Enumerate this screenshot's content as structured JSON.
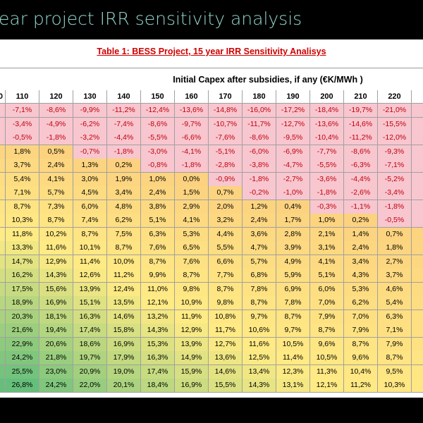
{
  "header": {
    "title": "ear project IRR sensitivity analysis"
  },
  "table": {
    "title": "Table 1: BESS Project, 15 year IRR Sensitivity Analisys",
    "caption": "Initial Capex after subsidies, if any (€K/MWh )",
    "columns": [
      "0",
      "110",
      "120",
      "130",
      "140",
      "150",
      "160",
      "170",
      "180",
      "190",
      "200",
      "210",
      "220"
    ],
    "rows": [
      [
        "-7,1%",
        "-8,6%",
        "-9,9%",
        "-11,2%",
        "-12,4%",
        "-13,6%",
        "-14,8%",
        "-16,0%",
        "-17,2%",
        "-18,4%",
        "-19,7%",
        "-21,0%"
      ],
      [
        "-3,4%",
        "-4,9%",
        "-6,2%",
        "-7,4%",
        "-8,6%",
        "-9,7%",
        "-10,7%",
        "-11,7%",
        "-12,7%",
        "-13,6%",
        "-14,6%",
        "-15,5%"
      ],
      [
        "-0,5%",
        "-1,8%",
        "-3,2%",
        "-4,4%",
        "-5,5%",
        "-6,6%",
        "-7,6%",
        "-8,6%",
        "-9,5%",
        "-10,4%",
        "-11,2%",
        "-12,0%"
      ],
      [
        "1,8%",
        "0,5%",
        "-0,7%",
        "-1,8%",
        "-3,0%",
        "-4,1%",
        "-5,1%",
        "-6,0%",
        "-6,9%",
        "-7,7%",
        "-8,6%",
        "-9,3%"
      ],
      [
        "3,7%",
        "2,4%",
        "1,3%",
        "0,2%",
        "-0,8%",
        "-1,8%",
        "-2,8%",
        "-3,8%",
        "-4,7%",
        "-5,5%",
        "-6,3%",
        "-7,1%"
      ],
      [
        "5,4%",
        "4,1%",
        "3,0%",
        "1,9%",
        "1,0%",
        "0,0%",
        "-0,9%",
        "-1,8%",
        "-2,7%",
        "-3,6%",
        "-4,4%",
        "-5,2%"
      ],
      [
        "7,1%",
        "5,7%",
        "4,5%",
        "3,4%",
        "2,4%",
        "1,5%",
        "0,7%",
        "-0,2%",
        "-1,0%",
        "-1,8%",
        "-2,6%",
        "-3,4%"
      ],
      [
        "8,7%",
        "7,3%",
        "6,0%",
        "4,8%",
        "3,8%",
        "2,9%",
        "2,0%",
        "1,2%",
        "0,4%",
        "-0,3%",
        "-1,1%",
        "-1,8%"
      ],
      [
        "10,3%",
        "8,7%",
        "7,4%",
        "6,2%",
        "5,1%",
        "4,1%",
        "3,2%",
        "2,4%",
        "1,7%",
        "1,0%",
        "0,2%",
        "-0,5%"
      ],
      [
        "11,8%",
        "10,2%",
        "8,7%",
        "7,5%",
        "6,3%",
        "5,3%",
        "4,4%",
        "3,6%",
        "2,8%",
        "2,1%",
        "1,4%",
        "0,7%"
      ],
      [
        "13,3%",
        "11,6%",
        "10,1%",
        "8,7%",
        "7,6%",
        "6,5%",
        "5,5%",
        "4,7%",
        "3,9%",
        "3,1%",
        "2,4%",
        "1,8%"
      ],
      [
        "14,7%",
        "12,9%",
        "11,4%",
        "10,0%",
        "8,7%",
        "7,6%",
        "6,6%",
        "5,7%",
        "4,9%",
        "4,1%",
        "3,4%",
        "2,7%"
      ],
      [
        "16,2%",
        "14,3%",
        "12,6%",
        "11,2%",
        "9,9%",
        "8,7%",
        "7,7%",
        "6,8%",
        "5,9%",
        "5,1%",
        "4,3%",
        "3,7%"
      ],
      [
        "17,5%",
        "15,6%",
        "13,9%",
        "12,4%",
        "11,0%",
        "9,8%",
        "8,7%",
        "7,8%",
        "6,9%",
        "6,0%",
        "5,3%",
        "4,6%"
      ],
      [
        "18,9%",
        "16,9%",
        "15,1%",
        "13,5%",
        "12,1%",
        "10,9%",
        "9,8%",
        "8,7%",
        "7,8%",
        "7,0%",
        "6,2%",
        "5,4%"
      ],
      [
        "20,3%",
        "18,1%",
        "16,3%",
        "14,6%",
        "13,2%",
        "11,9%",
        "10,8%",
        "9,7%",
        "8,7%",
        "7,9%",
        "7,0%",
        "6,3%"
      ],
      [
        "21,6%",
        "19,4%",
        "17,4%",
        "15,8%",
        "14,3%",
        "12,9%",
        "11,7%",
        "10,6%",
        "9,7%",
        "8,7%",
        "7,9%",
        "7,1%"
      ],
      [
        "22,9%",
        "20,6%",
        "18,6%",
        "16,9%",
        "15,3%",
        "13,9%",
        "12,7%",
        "11,6%",
        "10,5%",
        "9,6%",
        "8,7%",
        "7,9%"
      ],
      [
        "24,2%",
        "21,8%",
        "19,7%",
        "17,9%",
        "16,3%",
        "14,9%",
        "13,6%",
        "12,5%",
        "11,4%",
        "10,5%",
        "9,6%",
        "8,7%"
      ],
      [
        "25,5%",
        "23,0%",
        "20,9%",
        "19,0%",
        "17,4%",
        "15,9%",
        "14,6%",
        "13,4%",
        "12,3%",
        "11,3%",
        "10,4%",
        "9,5%"
      ],
      [
        "26,8%",
        "24,2%",
        "22,0%",
        "20,1%",
        "18,4%",
        "16,9%",
        "15,5%",
        "14,3%",
        "13,1%",
        "12,1%",
        "11,2%",
        "10,3%"
      ]
    ]
  }
}
